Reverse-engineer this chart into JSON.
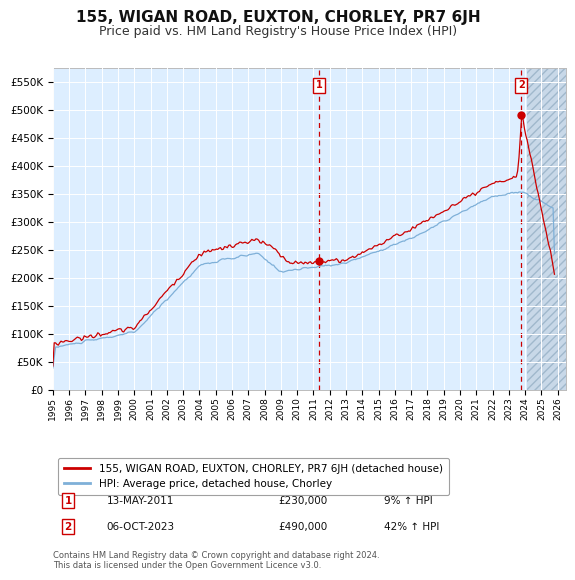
{
  "title": "155, WIGAN ROAD, EUXTON, CHORLEY, PR7 6JH",
  "subtitle": "Price paid vs. HM Land Registry's House Price Index (HPI)",
  "title_fontsize": 11,
  "subtitle_fontsize": 9,
  "background_color": "#ffffff",
  "plot_bg_color": "#ddeeff",
  "hatch_color": "#c8d8e8",
  "red_line_color": "#cc0000",
  "blue_line_color": "#7fb0d8",
  "grid_color": "#ffffff",
  "ylabel_ticks": [
    "£0",
    "£50K",
    "£100K",
    "£150K",
    "£200K",
    "£250K",
    "£300K",
    "£350K",
    "£400K",
    "£450K",
    "£500K",
    "£550K"
  ],
  "ylabel_values": [
    0,
    50000,
    100000,
    150000,
    200000,
    250000,
    300000,
    350000,
    400000,
    450000,
    500000,
    550000
  ],
  "ylim": [
    0,
    575000
  ],
  "xlim_start": 1995.0,
  "xlim_end": 2026.5,
  "x_tick_years": [
    1995,
    1996,
    1997,
    1998,
    1999,
    2000,
    2001,
    2002,
    2003,
    2004,
    2005,
    2006,
    2007,
    2008,
    2009,
    2010,
    2011,
    2012,
    2013,
    2014,
    2015,
    2016,
    2017,
    2018,
    2019,
    2020,
    2021,
    2022,
    2023,
    2024,
    2025,
    2026
  ],
  "sale1_x": 2011.36,
  "sale1_y": 230000,
  "sale1_label": "1",
  "sale2_x": 2023.76,
  "sale2_y": 490000,
  "sale2_label": "2",
  "legend_line1": "155, WIGAN ROAD, EUXTON, CHORLEY, PR7 6JH (detached house)",
  "legend_line2": "HPI: Average price, detached house, Chorley",
  "annotation1_date": "13-MAY-2011",
  "annotation1_price": "£230,000",
  "annotation1_hpi": "9% ↑ HPI",
  "annotation2_date": "06-OCT-2023",
  "annotation2_price": "£490,000",
  "annotation2_hpi": "42% ↑ HPI",
  "footer": "Contains HM Land Registry data © Crown copyright and database right 2024.\nThis data is licensed under the Open Government Licence v3.0."
}
